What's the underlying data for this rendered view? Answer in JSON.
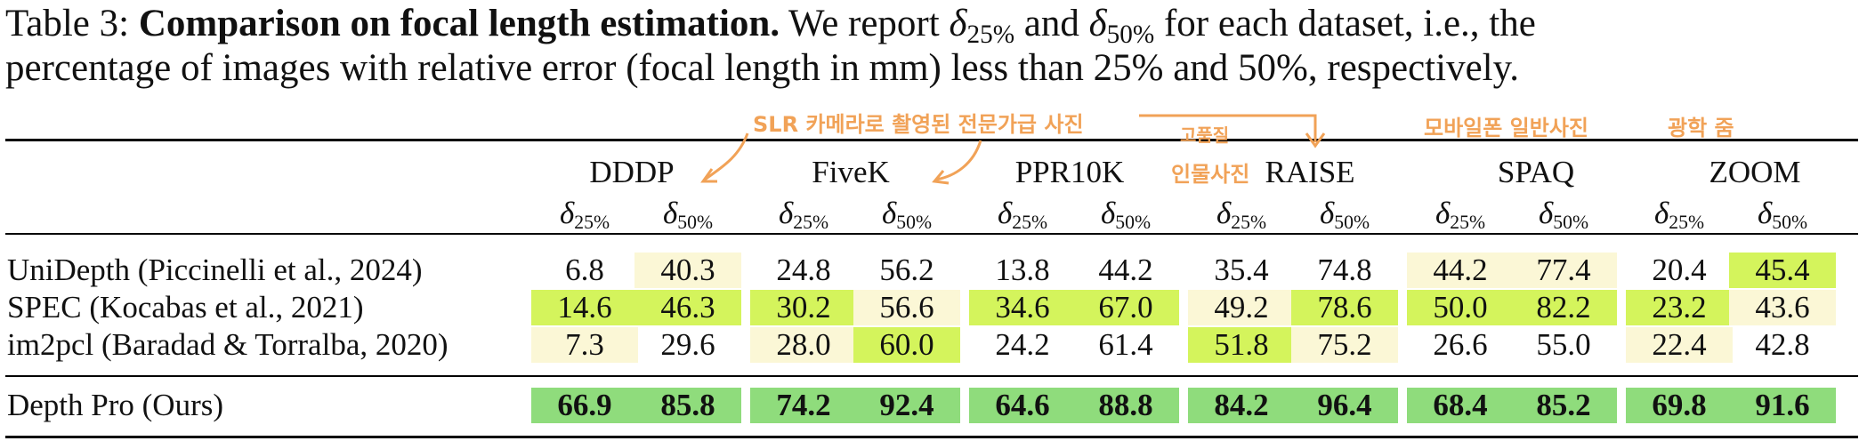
{
  "caption": {
    "prefix": "Table 3: ",
    "bold": "Comparison on focal length estimation.",
    "t1": " We report ",
    "m1_sym": "δ",
    "m1_sub": "25%",
    "t2": " and ",
    "m2_sym": "δ",
    "m2_sub": "50%",
    "t3": " for each dataset, i.e., the",
    "line2": "percentage of images with relative error (focal length in mm) less than 25% and 50%, respectively."
  },
  "datasets": [
    "DDDP",
    "FiveK",
    "PPR10K",
    "RAISE",
    "SPAQ",
    "ZOOM"
  ],
  "metric_symbol": "δ",
  "metrics": [
    "25%",
    "50%"
  ],
  "rows": [
    {
      "label": "UniDepth (Piccinelli et al., 2024)",
      "values": [
        "6.8",
        "40.3",
        "24.8",
        "56.2",
        "13.8",
        "44.2",
        "35.4",
        "74.8",
        "44.2",
        "77.4",
        "20.4",
        "45.4"
      ],
      "levels": [
        0,
        1,
        0,
        0,
        0,
        0,
        0,
        0,
        1,
        1,
        0,
        3
      ]
    },
    {
      "label": "SPEC (Kocabas et al., 2021)",
      "values": [
        "14.6",
        "46.3",
        "30.2",
        "56.6",
        "34.6",
        "67.0",
        "49.2",
        "78.6",
        "50.0",
        "82.2",
        "23.2",
        "43.6"
      ],
      "levels": [
        3,
        3,
        3,
        1,
        3,
        3,
        1,
        3,
        3,
        3,
        3,
        1
      ]
    },
    {
      "label": "im2pcl (Baradad & Torralba, 2020)",
      "values": [
        "7.3",
        "29.6",
        "28.0",
        "60.0",
        "24.2",
        "61.4",
        "51.8",
        "75.2",
        "26.6",
        "55.0",
        "22.4",
        "42.8"
      ],
      "levels": [
        1,
        0,
        1,
        3,
        0,
        0,
        3,
        1,
        0,
        0,
        1,
        0
      ]
    },
    {
      "label": "Depth Pro (Ours)",
      "values": [
        "66.9",
        "85.8",
        "74.2",
        "92.4",
        "64.6",
        "88.8",
        "84.2",
        "96.4",
        "68.4",
        "85.2",
        "69.8",
        "91.6"
      ],
      "levels": [
        4,
        4,
        4,
        4,
        4,
        4,
        4,
        4,
        4,
        4,
        4,
        4
      ],
      "bold": true
    }
  ],
  "annotations": {
    "a1": "SLR 카메라로 촬영된 전문가급 사진",
    "a2": "고품질",
    "a3": "인물사진",
    "a4": "모바일폰 일반사진",
    "a5": "광학 줌"
  },
  "colors": {
    "level1": "#fbf7d6",
    "level2": "#eef7a8",
    "level3": "#d4f45c",
    "level4": "#8fdc7c",
    "annotation": "#f1a257"
  }
}
